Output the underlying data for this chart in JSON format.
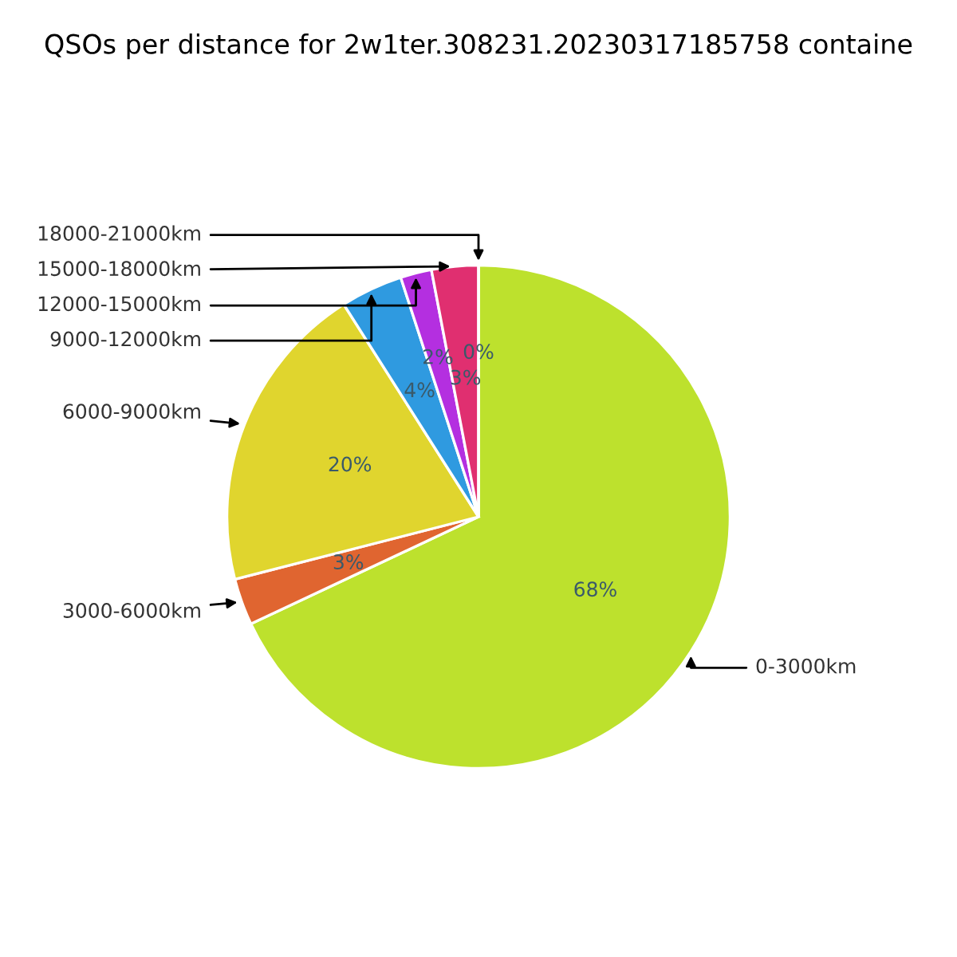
{
  "chart_data": {
    "type": "pie",
    "title": "QSOs per distance for 2w1ter.308231.20230317185758 containe",
    "categories": [
      "0-3000km",
      "3000-6000km",
      "6000-9000km",
      "9000-12000km",
      "12000-15000km",
      "15000-18000km",
      "18000-21000km"
    ],
    "values": [
      68,
      3,
      20,
      4,
      2,
      3,
      0
    ],
    "value_labels": [
      "68%",
      "3%",
      "20%",
      "4%",
      "2%",
      "3%",
      "0%"
    ],
    "colors": [
      "#bde12d",
      "#e06530",
      "#e0d52e",
      "#2f9ae0",
      "#b42fe0",
      "#e02f70",
      "#f0f0f0"
    ],
    "legend": false
  }
}
